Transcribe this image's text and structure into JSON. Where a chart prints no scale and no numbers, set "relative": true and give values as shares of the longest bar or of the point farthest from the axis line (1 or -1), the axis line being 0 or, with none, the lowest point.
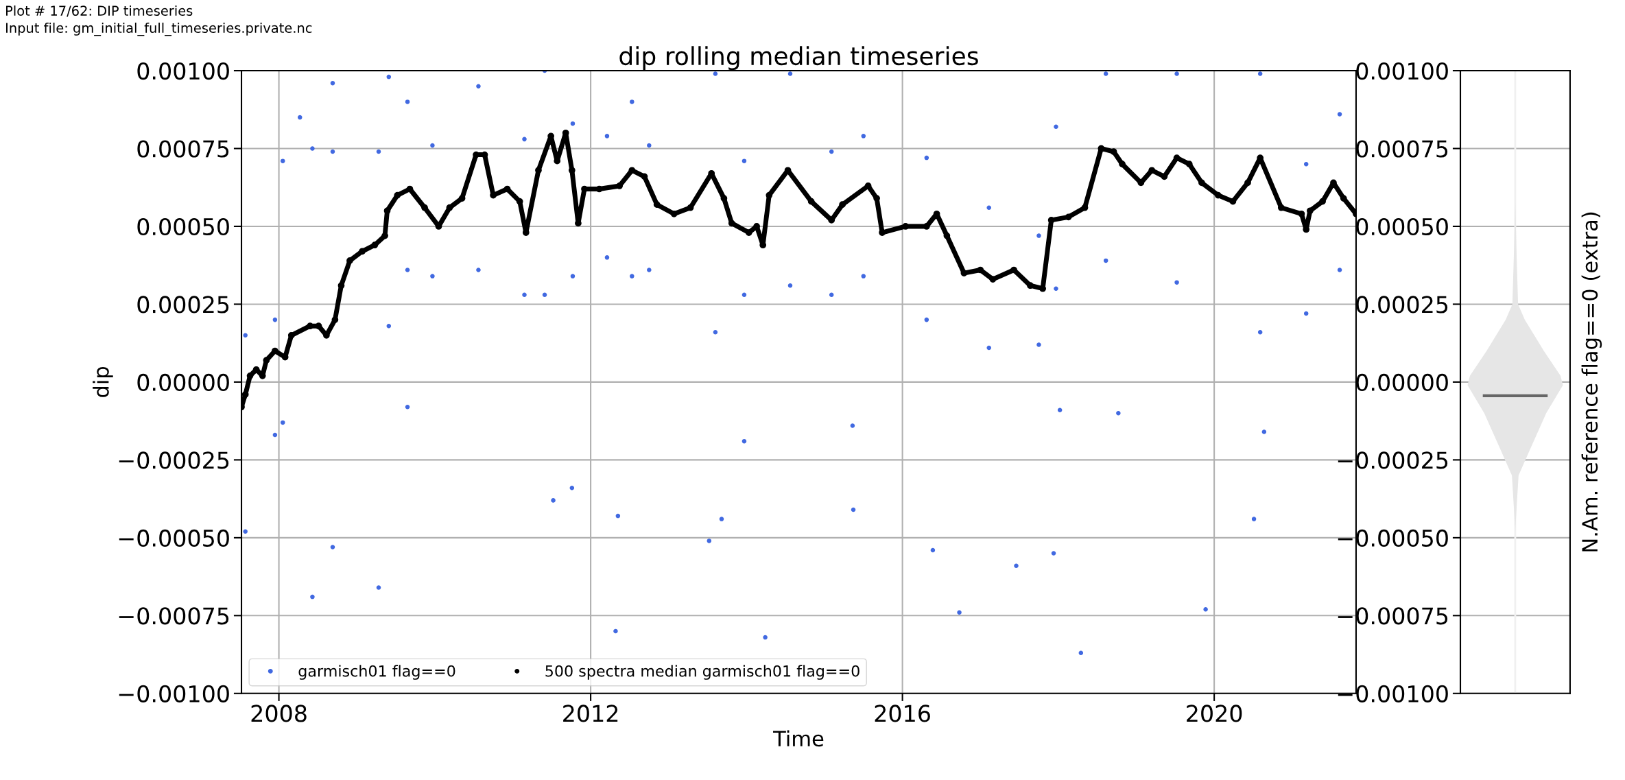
{
  "chart_data": [
    {
      "type": "scatter",
      "title": "dip rolling median timeseries",
      "xlabel": "Time",
      "ylabel": "dip",
      "annotations": [
        "Plot # 17/62: DIP timeseries",
        "Input file: gm_initial_full_timeseries.private.nc"
      ],
      "xlim": [
        2007.52,
        2021.82
      ],
      "xticks": [
        2008,
        2012,
        2016,
        2020
      ],
      "ylim": [
        -0.001,
        0.001
      ],
      "yticks": [
        {
          "value": -0.001,
          "label": "−0.00100"
        },
        {
          "value": -0.00075,
          "label": "−0.00075"
        },
        {
          "value": -0.0005,
          "label": "−0.00050"
        },
        {
          "value": -0.00025,
          "label": "−0.00025"
        },
        {
          "value": 0,
          "label": "0.00000"
        },
        {
          "value": 0.00025,
          "label": "0.00025"
        },
        {
          "value": 0.0005,
          "label": "0.00050"
        },
        {
          "value": 0.00075,
          "label": "0.00075"
        },
        {
          "value": 0.001,
          "label": "0.00100"
        }
      ],
      "grid": true,
      "legend": "bottom left",
      "marker": "circle",
      "series": [
        {
          "name": "garmisch01 flag==0",
          "type": "scatter",
          "color": "#4169e1",
          "x": [
            2007.57,
            2007.57,
            2007.95,
            2007.95,
            2008.05,
            2008.05,
            2008.43,
            2008.43,
            2008.69,
            2008.69,
            2009.28,
            2009.28,
            2009.41,
            2009.41,
            2009.65,
            2009.65,
            2009.97,
            2009.97,
            2010.56,
            2010.56,
            2011.15,
            2011.15,
            2011.41,
            2011.41,
            2011.77,
            2011.77,
            2012.21,
            2012.21,
            2012.53,
            2012.53,
            2012.75,
            2012.75,
            2013.6,
            2013.6,
            2013.97,
            2013.97,
            2014.56,
            2014.56,
            2015.09,
            2015.09,
            2015.5,
            2015.5,
            2016.31,
            2016.31,
            2017.11,
            2017.11,
            2017.75,
            2017.75,
            2017.97,
            2017.97,
            2018.61,
            2018.61,
            2019.52,
            2019.52,
            2020.59,
            2020.59,
            2021.18,
            2021.18,
            2021.61,
            2021.61,
            2008.27,
            2008.69,
            2009.65,
            2011.76,
            2012.32,
            2013.68,
            2014.24,
            2013.97,
            2011.52,
            2012.35,
            2013.52,
            2015.36,
            2015.37,
            2016.39,
            2016.73,
            2017.46,
            2017.94,
            2018.29,
            2019.89,
            2020.51,
            2020.64,
            2018.77,
            2018.02
          ],
          "values": [
            0.00015,
            -0.00048,
            0.0002,
            -0.00017,
            0.00071,
            -0.00013,
            0.00075,
            -0.00069,
            0.00074,
            -0.00053,
            0.00074,
            -0.00066,
            0.00098,
            0.00018,
            0.0009,
            0.00036,
            0.00076,
            0.00034,
            0.00095,
            0.00036,
            0.00078,
            0.00028,
            0.001,
            0.00028,
            0.00083,
            0.00034,
            0.00079,
            0.0004,
            0.0009,
            0.00034,
            0.00076,
            0.00036,
            0.00099,
            0.00016,
            0.00071,
            0.00028,
            0.00099,
            0.00031,
            0.00074,
            0.00028,
            0.00079,
            0.00034,
            0.00072,
            0.0002,
            0.00056,
            0.00011,
            0.00047,
            0.00012,
            0.00082,
            0.0003,
            0.00099,
            0.00039,
            0.00099,
            0.00032,
            0.00099,
            0.00016,
            0.0007,
            0.00022,
            0.00086,
            0.00036,
            0.00085,
            0.00096,
            -8e-05,
            -0.00034,
            -0.0008,
            -0.00044,
            -0.00082,
            -0.00019,
            -0.00038,
            -0.00043,
            -0.00051,
            -0.00014,
            -0.00041,
            -0.00054,
            -0.00074,
            -0.00059,
            -0.00055,
            -0.00087,
            -0.00073,
            -0.00044,
            -0.00016,
            -0.0001,
            -9e-05
          ]
        },
        {
          "name": "500 spectra median garmisch01 flag==0",
          "type": "line",
          "color": "#000000",
          "x": [
            2007.52,
            2007.57,
            2007.63,
            2007.71,
            2007.79,
            2007.84,
            2007.95,
            2008.08,
            2008.16,
            2008.4,
            2008.51,
            2008.61,
            2008.72,
            2008.8,
            2008.91,
            2009.07,
            2009.23,
            2009.36,
            2009.39,
            2009.52,
            2009.68,
            2009.87,
            2010.05,
            2010.19,
            2010.35,
            2010.53,
            2010.64,
            2010.75,
            2010.93,
            2011.09,
            2011.17,
            2011.33,
            2011.49,
            2011.57,
            2011.68,
            2011.76,
            2011.84,
            2011.92,
            2012.11,
            2012.37,
            2012.53,
            2012.69,
            2012.85,
            2013.07,
            2013.28,
            2013.55,
            2013.71,
            2013.81,
            2014.03,
            2014.13,
            2014.21,
            2014.29,
            2014.53,
            2014.83,
            2015.09,
            2015.23,
            2015.56,
            2015.67,
            2015.74,
            2016.04,
            2016.31,
            2016.44,
            2016.57,
            2016.79,
            2017.0,
            2017.16,
            2017.43,
            2017.64,
            2017.8,
            2017.91,
            2018.13,
            2018.34,
            2018.55,
            2018.71,
            2018.82,
            2019.06,
            2019.2,
            2019.36,
            2019.52,
            2019.68,
            2019.84,
            2020.05,
            2020.24,
            2020.43,
            2020.59,
            2020.86,
            2021.12,
            2021.18,
            2021.23,
            2021.39,
            2021.53,
            2021.66,
            2021.82
          ],
          "values": [
            -8e-05,
            -4e-05,
            2e-05,
            4e-05,
            2e-05,
            7e-05,
            0.0001,
            8e-05,
            0.00015,
            0.00018,
            0.00018,
            0.00015,
            0.0002,
            0.00031,
            0.00039,
            0.00042,
            0.00044,
            0.00047,
            0.00055,
            0.0006,
            0.00062,
            0.00056,
            0.0005,
            0.00056,
            0.00059,
            0.00073,
            0.00073,
            0.0006,
            0.00062,
            0.00058,
            0.00048,
            0.00068,
            0.00079,
            0.00071,
            0.0008,
            0.00068,
            0.00051,
            0.00062,
            0.00062,
            0.00063,
            0.00068,
            0.00066,
            0.00057,
            0.00054,
            0.00056,
            0.00067,
            0.00059,
            0.00051,
            0.00048,
            0.0005,
            0.00044,
            0.0006,
            0.00068,
            0.00058,
            0.00052,
            0.00057,
            0.00063,
            0.00059,
            0.00048,
            0.0005,
            0.0005,
            0.00054,
            0.00047,
            0.00035,
            0.00036,
            0.00033,
            0.00036,
            0.00031,
            0.0003,
            0.00052,
            0.00053,
            0.00056,
            0.00075,
            0.00074,
            0.0007,
            0.00064,
            0.00068,
            0.00066,
            0.00072,
            0.0007,
            0.00064,
            0.0006,
            0.00058,
            0.00064,
            0.00072,
            0.00056,
            0.00054,
            0.00049,
            0.00055,
            0.00058,
            0.00064,
            0.00059,
            0.00054
          ]
        }
      ]
    },
    {
      "type": "area",
      "orientation": "horizontal",
      "relative": true,
      "ylabel": "N.Am. reference flag==0 (extra)",
      "ylim": [
        -0.001,
        0.001
      ],
      "yticks": [
        {
          "value": -0.001,
          "label": "−0.00100"
        },
        {
          "value": -0.00075,
          "label": "−0.00075"
        },
        {
          "value": -0.0005,
          "label": "−0.00050"
        },
        {
          "value": -0.00025,
          "label": "−0.00025"
        },
        {
          "value": 0,
          "label": "0.00000"
        },
        {
          "value": 0.00025,
          "label": "0.00025"
        },
        {
          "value": 0.0005,
          "label": "0.00050"
        },
        {
          "value": 0.00075,
          "label": "0.00075"
        },
        {
          "value": 0.001,
          "label": "0.00100"
        }
      ],
      "grid": "y",
      "color": "#e6e6e6",
      "x": [
        -0.00048,
        -0.0004,
        -0.0003,
        -0.00022,
        -0.0001,
        -1e-05,
        2e-05,
        0.0001,
        0.0002,
        0.00025,
        0.0004,
        0.00058
      ],
      "values": [
        0,
        0.03,
        0.07,
        0.3,
        0.65,
        1,
        0.95,
        0.6,
        0.2,
        0.06,
        0.03,
        0
      ],
      "ref_lines": [
        {
          "axis": "y",
          "value": -4.4e-05,
          "color": "#666666"
        }
      ]
    }
  ]
}
